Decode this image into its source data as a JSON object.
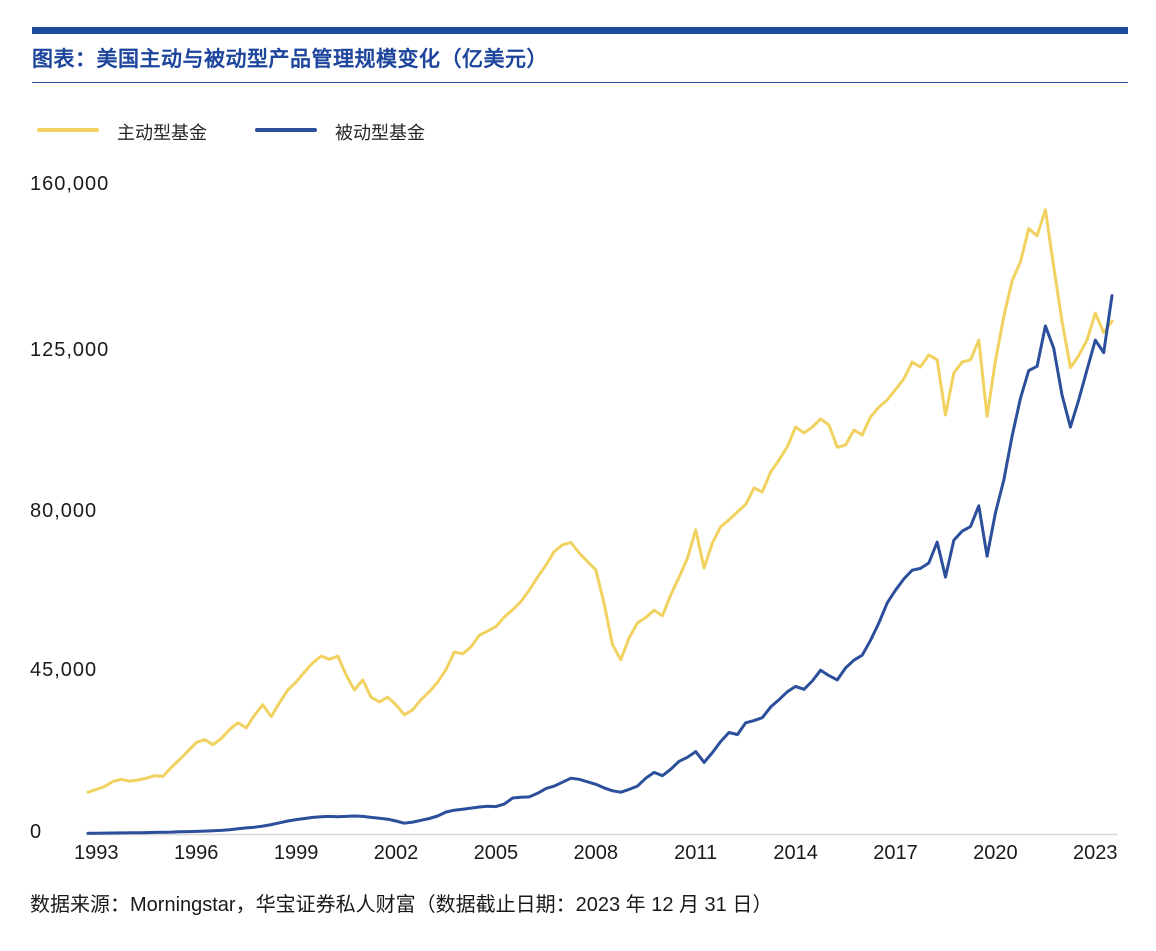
{
  "theme": {
    "accent_blue": "#1E4A9E",
    "title_blue": "#1D459C",
    "rule_blue": "#2B5099",
    "axis_gray": "#D8D8D8",
    "text_dark": "#1A1A1A"
  },
  "header": {
    "tag": "图表：",
    "title": "美国主动与被动型产品管理规模变化（亿美元）"
  },
  "legend": {
    "items": [
      {
        "label": "主动型基金",
        "color": "#F1D261"
      },
      {
        "label": "被动型基金",
        "color": "#2B4F9B"
      }
    ]
  },
  "source": {
    "text": "数据来源：Morningstar，华宝证券私人财富（数据截止日期：2023 年 12 月 31 日）"
  },
  "chart_data": {
    "type": "line",
    "title": "美国主动与被动型产品管理规模变化（亿美元）",
    "unit": "亿美元",
    "x_frequency": "quarterly",
    "x_start_year": 1993,
    "x_end_year": 2023,
    "x_tick_years": [
      1993,
      1996,
      1999,
      2002,
      2005,
      2008,
      2011,
      2014,
      2017,
      2020,
      2023
    ],
    "y_ticks": [
      {
        "label": "0",
        "value": 0
      },
      {
        "label": "45,000",
        "value": 45000
      },
      {
        "label": "80,000",
        "value": 80000
      },
      {
        "label": "125,000",
        "value": 125000
      },
      {
        "label": "160,000",
        "value": 160000
      }
    ],
    "grid": false,
    "legend_position": "top-left",
    "series": [
      {
        "name": "主动型基金",
        "color": "#F1D261",
        "values": [
          11600,
          12400,
          13200,
          14600,
          15200,
          14700,
          15000,
          15500,
          16200,
          16000,
          18500,
          20700,
          23000,
          25400,
          26200,
          24800,
          26500,
          29000,
          30900,
          29500,
          33000,
          35900,
          32600,
          36500,
          40000,
          42200,
          45000,
          47000,
          48500,
          47800,
          48500,
          44200,
          40000,
          42800,
          38000,
          36700,
          38000,
          35900,
          33100,
          34500,
          37300,
          39500,
          42200,
          45500,
          49400,
          49000,
          50500,
          53100,
          54000,
          55000,
          57100,
          58700,
          60500,
          63000,
          65900,
          68500,
          71500,
          73000,
          73500,
          71200,
          69300,
          67500,
          60000,
          51000,
          47700,
          52500,
          55800,
          57000,
          58600,
          57400,
          62000,
          65900,
          70000,
          76300,
          67900,
          73400,
          77000,
          78500,
          80300,
          82400,
          87000,
          85900,
          91500,
          94800,
          98500,
          104000,
          102400,
          104000,
          106300,
          104600,
          98400,
          99000,
          103200,
          101800,
          106900,
          109600,
          111600,
          114500,
          117500,
          122200,
          120800,
          124200,
          122800,
          107400,
          119100,
          122200,
          122800,
          127500,
          107000,
          122500,
          132500,
          140000,
          144000,
          151000,
          149500,
          155000,
          143000,
          131500,
          120600,
          124000,
          127500,
          133200,
          129100,
          131500
        ]
      },
      {
        "name": "被动型基金",
        "color": "#2B4F9B",
        "values": [
          200,
          220,
          250,
          280,
          310,
          340,
          370,
          400,
          440,
          490,
          540,
          600,
          660,
          730,
          800,
          880,
          1000,
          1200,
          1450,
          1700,
          1900,
          2200,
          2600,
          3100,
          3600,
          4000,
          4300,
          4600,
          4800,
          4900,
          4800,
          4900,
          5000,
          4900,
          4600,
          4400,
          4100,
          3600,
          3000,
          3300,
          3800,
          4300,
          5000,
          6100,
          6600,
          6900,
          7200,
          7500,
          7700,
          7600,
          8300,
          10000,
          10200,
          10300,
          11300,
          12600,
          13300,
          14400,
          15500,
          15200,
          14500,
          13800,
          12800,
          12000,
          11600,
          12400,
          13300,
          15500,
          17100,
          16200,
          18000,
          20200,
          21300,
          22900,
          19900,
          22600,
          25700,
          28200,
          27600,
          30900,
          31500,
          32300,
          35300,
          37300,
          39500,
          41000,
          40200,
          42500,
          45400,
          44000,
          42800,
          45900,
          47600,
          48700,
          52000,
          55800,
          60200,
          63000,
          65500,
          67400,
          67800,
          69000,
          73600,
          65900,
          74000,
          76000,
          77000,
          82000,
          70500,
          80000,
          89200,
          101500,
          112000,
          119800,
          121000,
          130500,
          125800,
          113000,
          104000,
          111600,
          120000,
          127500,
          124800,
          136900
        ]
      }
    ]
  }
}
